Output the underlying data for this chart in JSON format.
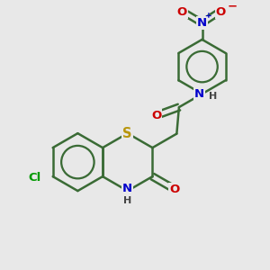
{
  "bg_color": "#e8e8e8",
  "bond_color": "#3a6b35",
  "bond_width": 1.8,
  "atom_colors": {
    "S": "#b8960c",
    "N": "#0000cc",
    "O": "#cc0000",
    "Cl": "#009900",
    "H": "#444444"
  },
  "font_size": 9.5,
  "fig_width": 3.0,
  "fig_height": 3.0,
  "dpi": 100,
  "xlim": [
    0,
    10
  ],
  "ylim": [
    0,
    10
  ]
}
